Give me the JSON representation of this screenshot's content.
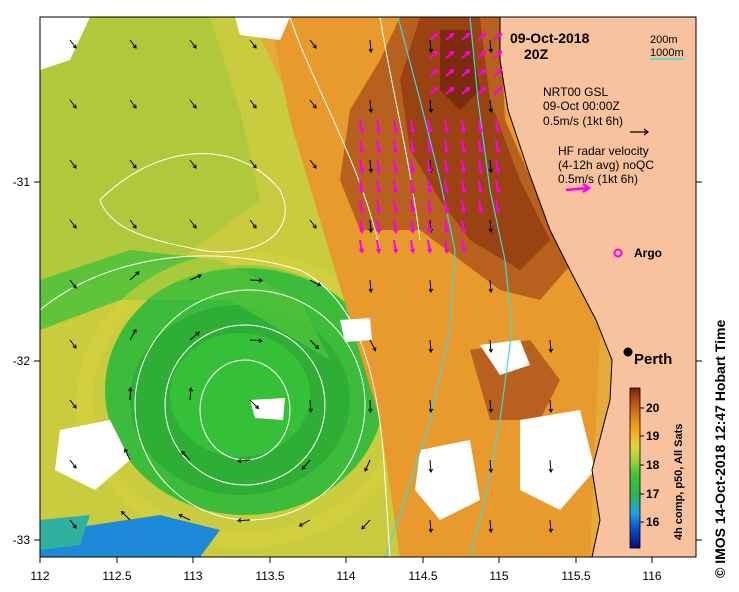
{
  "map": {
    "date_title": "09-Oct-2018",
    "time_title": "20Z",
    "depth_contours": [
      "200m",
      "1000m"
    ],
    "gsl_label": {
      "title": "NRT00 GSL",
      "time": "09-Oct 00:00Z",
      "scale": "0.5m/s (1kt 6h)"
    },
    "hf_label": {
      "title": "HF radar velocity",
      "subtitle": "(4-12h avg) noQC",
      "scale": "0.5m/s (1kt 6h)"
    },
    "argo_label": "Argo",
    "city_label": "Perth",
    "colorbar_label": "4h comp, p50, All Sats",
    "colorbar_ticks": [
      "16",
      "17",
      "18",
      "19",
      "20"
    ],
    "credit": "© IMOS 14-Oct-2018 12:47 Hobart Time",
    "x_ticks": [
      "112",
      "112.5",
      "113",
      "113.5",
      "114",
      "114.5",
      "115",
      "115.5",
      "116"
    ],
    "y_ticks": [
      "-31",
      "-32",
      "-33"
    ],
    "colors": {
      "land": "#f8c29e",
      "contour_shelf": "#ffffff",
      "contour_slope": "#40d8e0",
      "hf_vector": "#ff00e6",
      "argo": "#ff00e6"
    }
  },
  "chart_data": {
    "type": "heatmap",
    "variable": "sea surface temperature (°C)",
    "x_range": [
      112,
      116.3
    ],
    "y_range": [
      -33.1,
      -30.1
    ],
    "color_range": [
      15.5,
      20.5
    ],
    "features": {
      "cold_eddy_center": [
        113.35,
        -32.45
      ],
      "warm_leeuwin_current": "along 114.2–115.4 shelf edge",
      "argo_float": [
        115.75,
        -31.4
      ],
      "perth": [
        115.86,
        -31.95
      ]
    }
  }
}
